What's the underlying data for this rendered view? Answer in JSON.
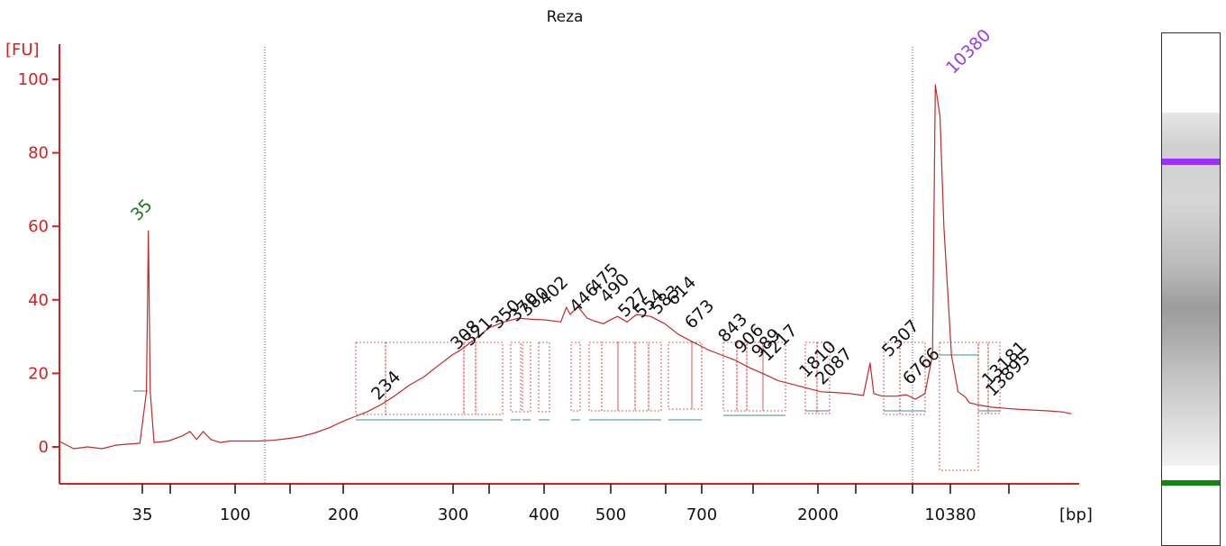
{
  "colors": {
    "axis": "#d42020",
    "trace": "#c22a2a",
    "peak_dotted": "#d43030",
    "baseline": "#3c8c8c",
    "marker_lower": "#1a7a1a",
    "marker_upper": "#9a3fe0",
    "gel_lower_band": "#0f8a0f",
    "gel_upper_band": "#9b30ff"
  },
  "chart_data": {
    "type": "line",
    "title": "Reza",
    "ylabel": "[FU]",
    "xlabel": "[bp]",
    "ylim": [
      -10,
      108
    ],
    "y_ticks": [
      "0",
      "20",
      "40",
      "60",
      "80",
      "100"
    ],
    "x_ticks": [
      "35",
      "100",
      "200",
      "300",
      "400",
      "500",
      "700",
      "2000",
      "10380"
    ],
    "markers": [
      {
        "label": "35",
        "fu": 58.8,
        "role": "lower"
      },
      {
        "label": "10380",
        "fu": 98.5,
        "role": "upper"
      }
    ],
    "peaks": [
      "234",
      "308",
      "321",
      "350",
      "370",
      "380",
      "402",
      "446",
      "475",
      "490",
      "527",
      "554",
      "583",
      "614",
      "673",
      "843",
      "906",
      "989",
      "1217",
      "1810",
      "2087",
      "5307",
      "6766",
      "13181",
      "13895"
    ],
    "trace": [
      [
        0.0,
        1.5
      ],
      [
        1.5,
        -0.5
      ],
      [
        3.0,
        0.0
      ],
      [
        4.5,
        -0.5
      ],
      [
        6.0,
        0.5
      ],
      [
        8.5,
        1.0
      ],
      [
        9.2,
        15.0
      ],
      [
        9.4,
        58.8
      ],
      [
        9.6,
        15.0
      ],
      [
        10.0,
        1.2
      ],
      [
        11.5,
        1.6
      ],
      [
        13.0,
        3.0
      ],
      [
        13.8,
        4.2
      ],
      [
        14.5,
        2.0
      ],
      [
        15.2,
        4.2
      ],
      [
        16.0,
        2.0
      ],
      [
        17.0,
        1.2
      ],
      [
        18.0,
        1.6
      ],
      [
        19.5,
        1.6
      ],
      [
        21.0,
        1.6
      ],
      [
        22.5,
        1.8
      ],
      [
        24.0,
        2.2
      ],
      [
        25.5,
        2.8
      ],
      [
        27.0,
        3.8
      ],
      [
        28.5,
        5.2
      ],
      [
        30.0,
        7.0
      ],
      [
        31.2,
        8.2
      ],
      [
        32.5,
        9.5
      ],
      [
        34.0,
        11.5
      ],
      [
        35.5,
        14.0
      ],
      [
        37.0,
        16.8
      ],
      [
        38.5,
        19.0
      ],
      [
        40.0,
        22.0
      ],
      [
        41.5,
        25.0
      ],
      [
        42.5,
        26.5
      ],
      [
        44.0,
        29.5
      ],
      [
        45.5,
        32.5
      ],
      [
        47.0,
        34.0
      ],
      [
        48.5,
        35.0
      ],
      [
        50.0,
        34.7
      ],
      [
        51.5,
        34.5
      ],
      [
        53.0,
        34.0
      ],
      [
        53.6,
        38.0
      ],
      [
        54.0,
        36.0
      ],
      [
        54.8,
        38.2
      ],
      [
        55.8,
        35.0
      ],
      [
        56.6,
        34.2
      ],
      [
        57.5,
        33.5
      ],
      [
        58.2,
        34.5
      ],
      [
        59.0,
        35.5
      ],
      [
        60.0,
        34.0
      ],
      [
        61.0,
        36.0
      ],
      [
        62.5,
        35.5
      ],
      [
        64.0,
        33.5
      ],
      [
        65.5,
        30.5
      ],
      [
        67.0,
        28.5
      ],
      [
        68.5,
        26.5
      ],
      [
        70.0,
        25.0
      ],
      [
        71.5,
        23.5
      ],
      [
        73.0,
        21.5
      ],
      [
        74.5,
        19.8
      ],
      [
        76.0,
        18.0
      ],
      [
        77.5,
        17.0
      ],
      [
        79.0,
        16.0
      ],
      [
        80.5,
        15.0
      ],
      [
        82.0,
        14.8
      ],
      [
        83.5,
        14.5
      ],
      [
        85.0,
        14.0
      ],
      [
        85.7,
        22.8
      ],
      [
        86.1,
        14.5
      ],
      [
        87.0,
        13.8
      ],
      [
        88.5,
        13.8
      ],
      [
        89.5,
        14.2
      ],
      [
        90.5,
        13.0
      ],
      [
        91.5,
        14.5
      ],
      [
        92.3,
        25.0
      ],
      [
        92.6,
        98.5
      ],
      [
        93.1,
        90.0
      ],
      [
        93.5,
        60.0
      ],
      [
        94.3,
        25.0
      ],
      [
        95.0,
        15.0
      ],
      [
        95.8,
        13.5
      ],
      [
        96.2,
        12.0
      ],
      [
        97.0,
        11.5
      ],
      [
        98.5,
        10.8
      ],
      [
        100.0,
        10.5
      ],
      [
        101.5,
        10.2
      ],
      [
        103.0,
        10.0
      ],
      [
        104.5,
        9.8
      ],
      [
        106.0,
        9.5
      ],
      [
        107.0,
        9.0
      ]
    ]
  }
}
